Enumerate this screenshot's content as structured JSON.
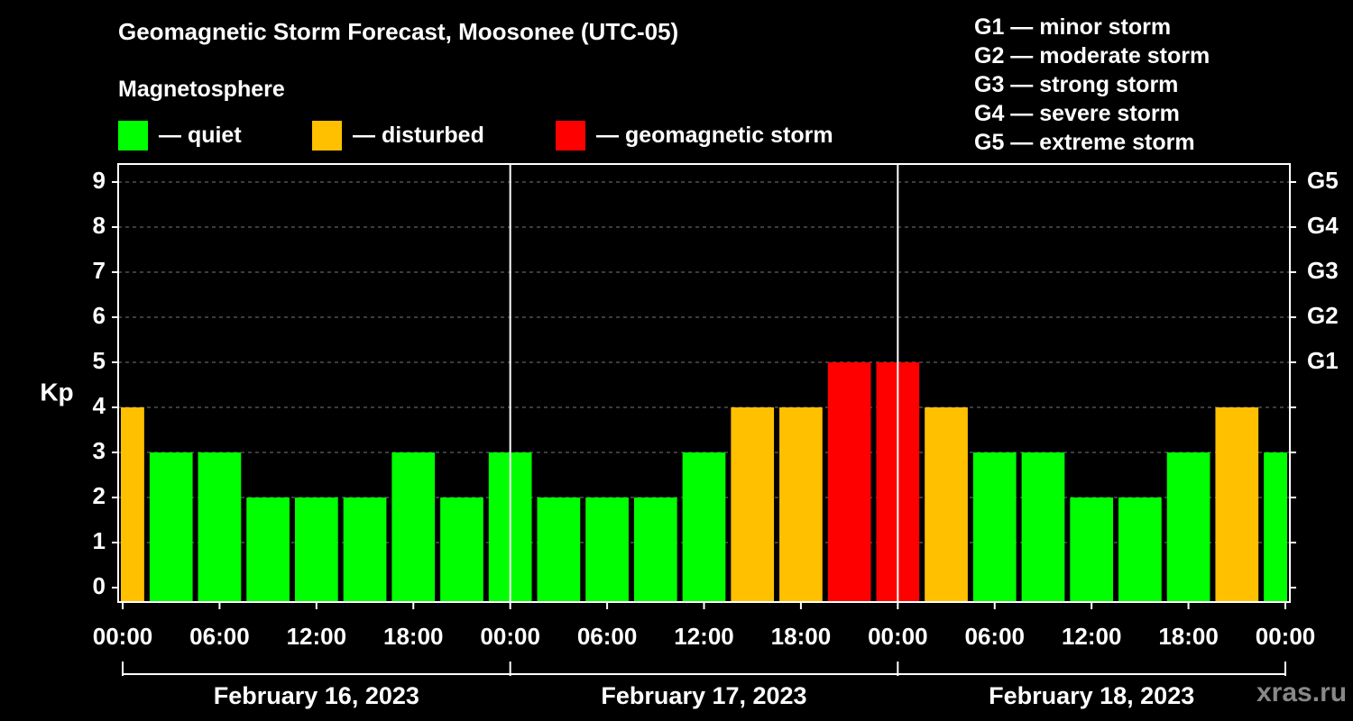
{
  "title": "Geomagnetic Storm Forecast, Moosonee (UTC-05)",
  "legend": {
    "heading": "Magnetosphere",
    "items": [
      {
        "label": "— quiet",
        "color": "#00ff00"
      },
      {
        "label": "— disturbed",
        "color": "#ffc000"
      },
      {
        "label": "— geomagnetic storm",
        "color": "#ff0000"
      }
    ]
  },
  "storm_levels": [
    "G1 — minor storm",
    "G2 — moderate storm",
    "G3 — strong storm",
    "G4 — severe storm",
    "G5 — extreme storm"
  ],
  "watermark": "xras.ru",
  "chart_data": {
    "type": "bar",
    "ylabel": "Kp",
    "ylim": [
      0,
      9
    ],
    "yticks": [
      "0",
      "1",
      "2",
      "3",
      "4",
      "5",
      "6",
      "7",
      "8",
      "9"
    ],
    "right_ticks": [
      {
        "value": 5,
        "label": "G1"
      },
      {
        "value": 6,
        "label": "G2"
      },
      {
        "value": 7,
        "label": "G3"
      },
      {
        "value": 8,
        "label": "G4"
      },
      {
        "value": 9,
        "label": "G5"
      }
    ],
    "xticks": [
      "00:00",
      "06:00",
      "12:00",
      "18:00",
      "00:00",
      "06:00",
      "12:00",
      "18:00",
      "00:00",
      "06:00",
      "12:00",
      "18:00",
      "00:00"
    ],
    "days": [
      "February 16, 2023",
      "February 17, 2023",
      "February 18, 2023"
    ],
    "x_range_hours": [
      0,
      72
    ],
    "bar_start_hours": [
      -1.5,
      1.5,
      4.5,
      7.5,
      10.5,
      13.5,
      16.5,
      19.5,
      22.5,
      25.5,
      28.5,
      31.5,
      34.5,
      37.5,
      40.5,
      43.5,
      46.5,
      49.5,
      52.5,
      55.5,
      58.5,
      61.5,
      64.5,
      67.5,
      70.5
    ],
    "bar_width_hours": 3,
    "values": [
      4,
      3,
      3,
      2,
      2,
      2,
      3,
      2,
      3,
      2,
      2,
      2,
      3,
      4,
      4,
      5,
      5,
      4,
      3,
      3,
      2,
      2,
      3,
      4,
      3
    ],
    "colors": {
      "quiet": "#00ff00",
      "disturbed": "#ffc000",
      "storm": "#ff0000"
    },
    "grid": "dashed horizontal at each Kp; solid vertical at day boundaries"
  }
}
